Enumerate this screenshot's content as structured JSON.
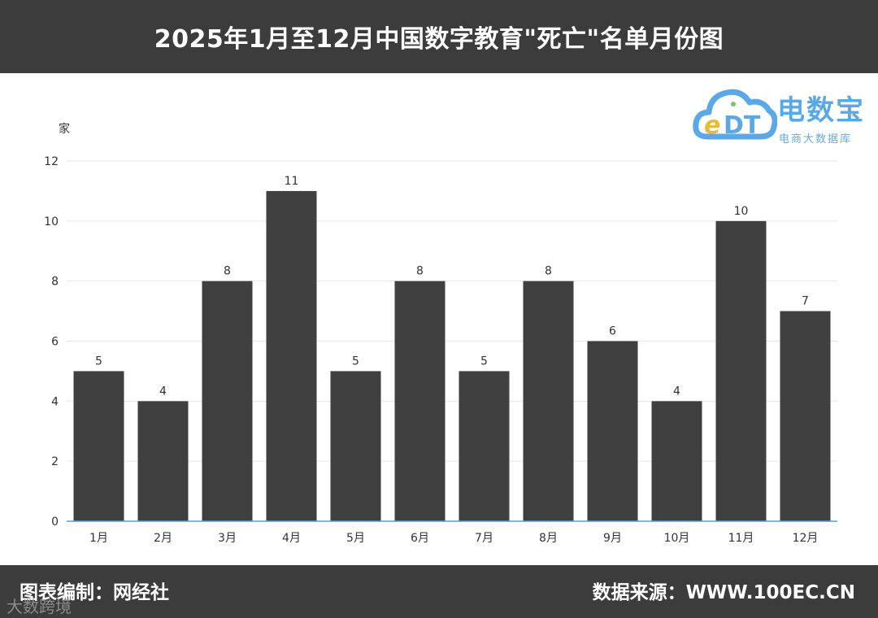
{
  "header": {
    "title": "2025年1月至12月中国数字教育\"死亡\"名单月份图"
  },
  "logo": {
    "name": "电数宝",
    "tagline": "电商大数据库",
    "icon": "cloud-edt-icon"
  },
  "footer": {
    "credit_left": "图表编制：网经社",
    "credit_right": "数据来源：WWW.100EC.CN"
  },
  "watermark": "大数跨境",
  "colors": {
    "bar": "#404040",
    "header_bg": "#3c3c3c",
    "axis": "#5b9bd5",
    "grid": "#e6e6e6"
  },
  "chart_data": {
    "type": "bar",
    "ylabel": "家",
    "categories": [
      "1月",
      "2月",
      "3月",
      "4月",
      "5月",
      "6月",
      "7月",
      "8月",
      "9月",
      "10月",
      "11月",
      "12月"
    ],
    "values": [
      5,
      4,
      8,
      11,
      5,
      8,
      5,
      8,
      6,
      4,
      10,
      7
    ],
    "ylim": [
      0,
      12
    ],
    "yticks": [
      0,
      2,
      4,
      6,
      8,
      10,
      12
    ],
    "grid": true,
    "data_labels": true
  }
}
